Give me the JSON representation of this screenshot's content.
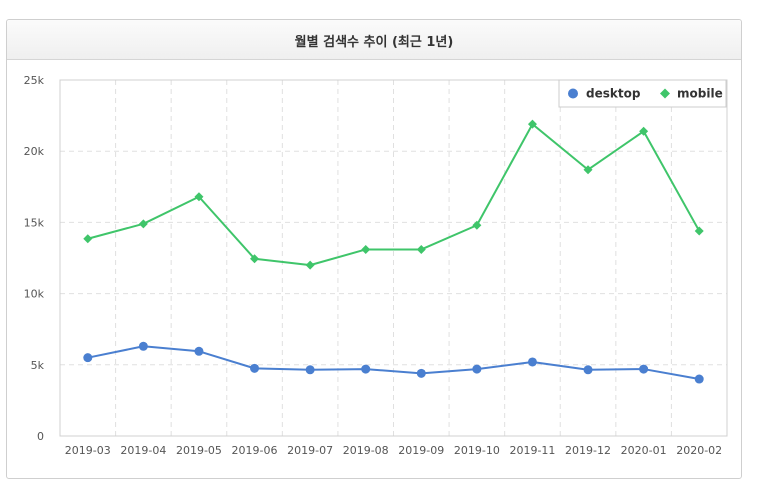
{
  "panel": {
    "title": "월별 검색수 추이 (최근 1년)"
  },
  "colors": {
    "desktop": "#4a7fd0",
    "mobile": "#3fc56a",
    "grid": "#e0e0e0",
    "axis": "#d0d0d0"
  },
  "chart_data": {
    "type": "line",
    "title": "월별 검색수 추이 (최근 1년)",
    "categories": [
      "2019-03",
      "2019-04",
      "2019-05",
      "2019-06",
      "2019-07",
      "2019-08",
      "2019-09",
      "2019-10",
      "2019-11",
      "2019-12",
      "2020-01",
      "2020-02"
    ],
    "series": [
      {
        "name": "desktop",
        "color": "#4a7fd0",
        "marker": "circle",
        "values": [
          5500,
          6300,
          5950,
          4750,
          4650,
          4700,
          4400,
          4700,
          5200,
          4650,
          4700,
          4000
        ]
      },
      {
        "name": "mobile",
        "color": "#3fc56a",
        "marker": "diamond",
        "values": [
          13850,
          14900,
          16800,
          12450,
          12000,
          13100,
          13100,
          14800,
          21900,
          18700,
          21400,
          14400
        ]
      }
    ],
    "ylim": [
      0,
      25000
    ],
    "yticks": [
      0,
      5000,
      10000,
      15000,
      20000,
      25000
    ],
    "ytick_labels": [
      "0",
      "5k",
      "10k",
      "15k",
      "20k",
      "25k"
    ],
    "grid": true,
    "legend": "top-right"
  }
}
